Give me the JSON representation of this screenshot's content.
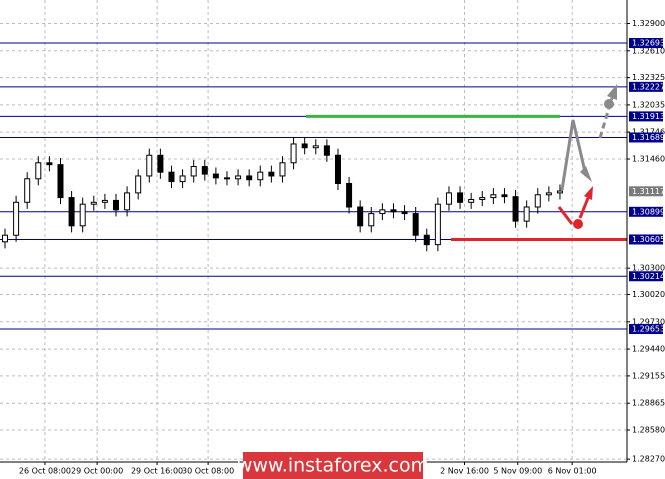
{
  "chart_data": {
    "type": "candlestick",
    "color": "#000000",
    "grid": true,
    "open": [
      1.3058,
      1.3065,
      1.31,
      1.3125,
      1.3142,
      1.314,
      1.3105,
      1.3075,
      1.3098,
      1.31,
      1.3102,
      1.3092,
      1.311,
      1.3128,
      1.315,
      1.3132,
      1.3122,
      1.3128,
      1.3138,
      1.313,
      1.3126,
      1.3125,
      1.3128,
      1.3124,
      1.3132,
      1.3128,
      1.3142,
      1.3162,
      1.3158,
      1.316,
      1.315,
      1.312,
      1.3095,
      1.3075,
      1.3088,
      1.3092,
      1.309,
      1.3088,
      1.3065,
      1.3055,
      1.3098,
      1.311,
      1.31,
      1.3103,
      1.3105,
      1.3108,
      1.3106,
      1.308,
      1.3095,
      1.3108,
      1.311
    ],
    "high": [
      1.3072,
      1.3107,
      1.3132,
      1.3149,
      1.3149,
      1.3147,
      1.3112,
      1.3105,
      1.3107,
      1.3109,
      1.3109,
      1.3117,
      1.3135,
      1.3157,
      1.3157,
      1.3139,
      1.3135,
      1.3145,
      1.3145,
      1.3137,
      1.3133,
      1.3135,
      1.3135,
      1.3139,
      1.3139,
      1.3149,
      1.3169,
      1.3169,
      1.3167,
      1.3167,
      1.3157,
      1.3127,
      1.3102,
      1.3095,
      1.3099,
      1.3099,
      1.3097,
      1.3095,
      1.3072,
      1.3105,
      1.3117,
      1.3117,
      1.311,
      1.3112,
      1.3115,
      1.3115,
      1.3113,
      1.3102,
      1.3115,
      1.3117,
      1.3119
    ],
    "low": [
      1.3051,
      1.3058,
      1.3093,
      1.3118,
      1.3133,
      1.3098,
      1.3068,
      1.3068,
      1.3091,
      1.3093,
      1.3085,
      1.3085,
      1.3103,
      1.3121,
      1.3125,
      1.3115,
      1.3115,
      1.3121,
      1.3123,
      1.3119,
      1.3118,
      1.3118,
      1.3117,
      1.3117,
      1.3121,
      1.3121,
      1.3135,
      1.3151,
      1.3151,
      1.3143,
      1.3113,
      1.3088,
      1.3068,
      1.3068,
      1.3081,
      1.3083,
      1.3081,
      1.3058,
      1.3048,
      1.3048,
      1.3091,
      1.3093,
      1.3093,
      1.3096,
      1.3098,
      1.3099,
      1.3073,
      1.3073,
      1.3088,
      1.3101,
      1.3103
    ],
    "close": [
      1.3065,
      1.31,
      1.3125,
      1.3142,
      1.314,
      1.3105,
      1.3075,
      1.3098,
      1.31,
      1.3102,
      1.3092,
      1.311,
      1.3128,
      1.315,
      1.3132,
      1.3122,
      1.3128,
      1.3138,
      1.313,
      1.3126,
      1.3125,
      1.3128,
      1.3124,
      1.3132,
      1.3128,
      1.3142,
      1.3162,
      1.3158,
      1.316,
      1.315,
      1.312,
      1.3095,
      1.3075,
      1.3088,
      1.3092,
      1.309,
      1.3088,
      1.3065,
      1.3055,
      1.3098,
      1.311,
      1.31,
      1.3103,
      1.3105,
      1.3108,
      1.3106,
      1.308,
      1.3095,
      1.3108,
      1.311,
      1.3112
    ],
    "xlim": [
      -0.45,
      56.04
    ],
    "xticks": [
      {
        "value": 3.6,
        "label": "26 Oct 08:00"
      },
      {
        "value": 8.3,
        "label": "29 Oct 00:00"
      },
      {
        "value": 13.7,
        "label": "29 Oct 16:00"
      },
      {
        "value": 18.3,
        "label": "30 Oct 08:00"
      },
      {
        "value": 41.4,
        "label": "2 Nov 16:00"
      },
      {
        "value": 46.2,
        "label": "5 Nov 09:00"
      },
      {
        "value": 51.1,
        "label": "6 Nov 01:00"
      }
    ],
    "ylim": [
      1.2824,
      1.3315
    ],
    "yticks": [
      {
        "value": 1.329,
        "label": "1.32900"
      },
      {
        "value": 1.3261,
        "label": "1.32610"
      },
      {
        "value": 1.32325,
        "label": "1.32325"
      },
      {
        "value": 1.32035,
        "label": "1.32035"
      },
      {
        "value": 1.31746,
        "label": "1.31746"
      },
      {
        "value": 1.3146,
        "label": "1.31460"
      },
      {
        "value": 1.303,
        "label": "1.30300"
      },
      {
        "value": 1.3002,
        "label": "1.30020"
      },
      {
        "value": 1.2973,
        "label": "1.29730"
      },
      {
        "value": 1.2944,
        "label": "1.29440"
      },
      {
        "value": 1.29155,
        "label": "1.29155"
      },
      {
        "value": 1.28865,
        "label": "1.28865"
      },
      {
        "value": 1.2858,
        "label": "1.28580"
      },
      {
        "value": 1.2827,
        "label": "1.28270"
      }
    ],
    "levels": [
      1.32693,
      1.32227,
      1.31913,
      1.31689,
      1.30899,
      1.30605,
      1.30214,
      1.29653
    ],
    "current_price": 1.31117,
    "watermark": "www.instaforex.com"
  }
}
